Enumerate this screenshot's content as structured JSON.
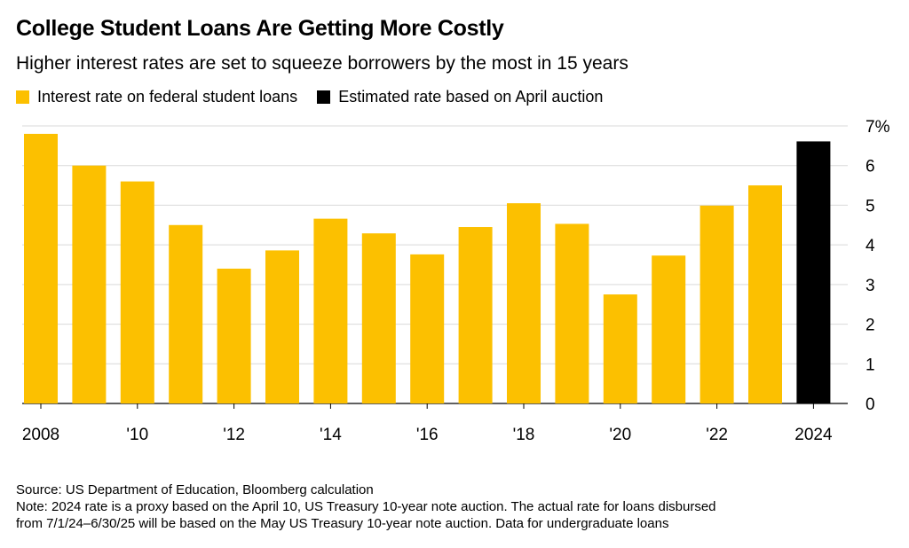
{
  "chart_data": {
    "type": "bar",
    "title": "College Student Loans Are Getting More Costly",
    "subtitle": "Higher interest rates are set to squeeze borrowers by the most in 15 years",
    "categories": [
      "2008",
      "2009",
      "2010",
      "2011",
      "2012",
      "2013",
      "2014",
      "2015",
      "2016",
      "2017",
      "2018",
      "2019",
      "2020",
      "2021",
      "2022",
      "2023",
      "2024"
    ],
    "x_tick_labels": [
      "2008",
      "",
      "'10",
      "",
      "'12",
      "",
      "'14",
      "",
      "'16",
      "",
      "'18",
      "",
      "'20",
      "",
      "'22",
      "",
      "2024"
    ],
    "series": [
      {
        "name": "Interest rate on federal student loans",
        "color": "#fcc000",
        "values": [
          6.8,
          6.0,
          5.6,
          4.5,
          3.4,
          3.86,
          4.66,
          4.29,
          3.76,
          4.45,
          5.05,
          4.53,
          2.75,
          3.73,
          4.99,
          5.5,
          null
        ]
      },
      {
        "name": "Estimated rate based on April auction",
        "color": "#000000",
        "values": [
          null,
          null,
          null,
          null,
          null,
          null,
          null,
          null,
          null,
          null,
          null,
          null,
          null,
          null,
          null,
          null,
          6.61
        ]
      }
    ],
    "y_ticks": [
      "0",
      "1",
      "2",
      "3",
      "4",
      "5",
      "6",
      "7%"
    ],
    "ylim": [
      0,
      7
    ],
    "grid": true,
    "legend_position": "top-left"
  },
  "footer": {
    "source": "Source: US Department of Education, Bloomberg calculation",
    "note_line1": "Note: 2024 rate is a proxy based on the April 10, US Treasury 10-year note auction. The actual rate for loans disbursed",
    "note_line2": "from 7/1/24–6/30/25 will be based on the May US Treasury 10-year note auction. Data for undergraduate loans"
  }
}
